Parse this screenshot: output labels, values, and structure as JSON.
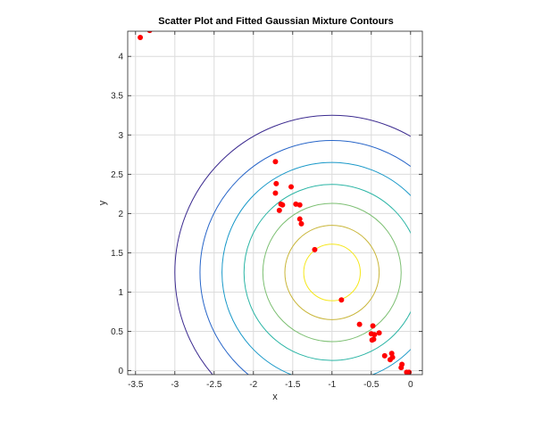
{
  "chart_data": {
    "type": "scatter",
    "title": "Scatter Plot and Fitted Gaussian Mixture Contours",
    "xlabel": "x",
    "ylabel": "y",
    "xlim": [
      -3.6,
      0.15
    ],
    "ylim": [
      -0.05,
      4.32
    ],
    "grid": true,
    "x_ticks": [
      -3.5,
      -3,
      -2.5,
      -2,
      -1.5,
      -1,
      -0.5,
      0
    ],
    "x_tick_labels": [
      "-3.5",
      "-3",
      "-2.5",
      "-2",
      "-1.5",
      "-1",
      "-0.5",
      "0"
    ],
    "y_ticks": [
      0,
      0.5,
      1,
      1.5,
      2,
      2.5,
      3,
      3.5,
      4
    ],
    "y_tick_labels": [
      "0",
      "0.5",
      "1",
      "1.5",
      "2",
      "2.5",
      "3",
      "3.5",
      "4"
    ],
    "series": [
      {
        "kind": "points",
        "color": "#ff0000",
        "x": [
          -3.44,
          -3.32,
          -1.72,
          -1.71,
          -1.72,
          -1.67,
          -1.65,
          -1.63,
          -1.52,
          -1.46,
          -1.41,
          -1.41,
          -1.39,
          -1.22,
          -0.88,
          -0.65,
          -0.5,
          -0.48,
          -0.47,
          -0.49,
          -0.46,
          -0.4,
          -0.33,
          -0.26,
          -0.24,
          -0.23,
          -0.12,
          -0.11,
          -0.05,
          -0.02
        ],
        "y": [
          4.24,
          4.33,
          2.66,
          2.38,
          2.26,
          2.04,
          2.12,
          2.11,
          2.34,
          2.12,
          2.11,
          1.93,
          1.87,
          1.54,
          0.9,
          0.59,
          0.47,
          0.57,
          0.4,
          0.39,
          0.46,
          0.48,
          0.19,
          0.14,
          0.22,
          0.17,
          0.04,
          0.08,
          -0.02,
          -0.02
        ]
      }
    ],
    "contours": {
      "center": [
        -1.0,
        1.25
      ],
      "radii": [
        2.0,
        1.68,
        1.4,
        1.12,
        0.88,
        0.6,
        0.36
      ],
      "colors": [
        "#3b2a8f",
        "#2765c8",
        "#1898c8",
        "#2bb5a5",
        "#7cbf72",
        "#c9b63a",
        "#f5e71a"
      ],
      "x_clip_max": 0.0
    }
  }
}
